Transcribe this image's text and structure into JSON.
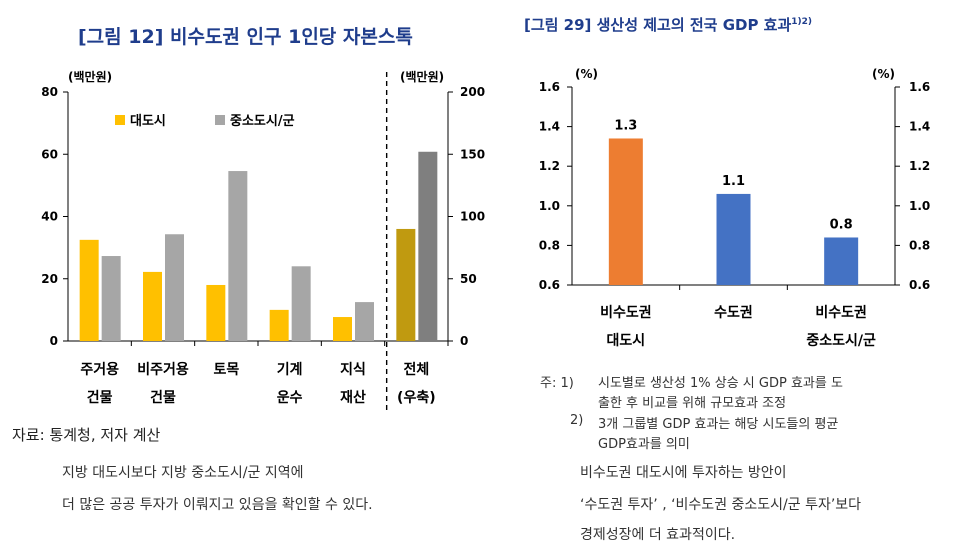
{
  "left_title": "[그림 12] 비수도권 인구 1인당 자본스톡",
  "right_title": "[그림 29] 생산성 제고의 전국 GDP 효과",
  "right_title_sup": "1)2)",
  "chart_data": [
    {
      "type": "bar",
      "title": "[그림 12] 비수도권 인구 1인당 자본스톡",
      "y_left_unit": "(백만원)",
      "y_right_unit": "(백만원)",
      "ylim_left": [
        0,
        80
      ],
      "yticks_left": [
        "0",
        "20",
        "40",
        "60",
        "80"
      ],
      "ylim_right": [
        0,
        200
      ],
      "yticks_right": [
        "0",
        "50",
        "100",
        "150",
        "200"
      ],
      "legend_position": "top-left",
      "categories": [
        [
          "주거용",
          "건물"
        ],
        [
          "비주거용",
          "건물"
        ],
        [
          "토목"
        ],
        [
          "기계",
          "운수"
        ],
        [
          "지식",
          "재산"
        ],
        [
          "전체",
          "(우축)"
        ]
      ],
      "series": [
        {
          "name": "대도시",
          "color": "#ffc000",
          "values": [
            32.5,
            22.2,
            18.0,
            10.0,
            7.7,
            90.0
          ]
        },
        {
          "name": "중소도시/군",
          "color": "#a6a6a6",
          "values": [
            27.3,
            34.3,
            54.6,
            24.0,
            12.5,
            152.0
          ]
        }
      ],
      "last_category_colors": [
        "#c09a10",
        "#7f7f7f"
      ],
      "divider": "between 지식재산 and 전체 (dashed)"
    },
    {
      "type": "bar",
      "title": "[그림 29] 생산성 제고의 전국 GDP 효과",
      "y_unit_left": "(%)",
      "y_unit_right": "(%)",
      "ylim": [
        0.6,
        1.6
      ],
      "yticks": [
        "0.6",
        "0.8",
        "1.0",
        "1.2",
        "1.4",
        "1.6"
      ],
      "categories": [
        [
          "비수도권",
          "대도시"
        ],
        [
          "수도권"
        ],
        [
          "비수도권",
          "중소도시/군"
        ]
      ],
      "values": [
        1.34,
        1.06,
        0.84
      ],
      "data_labels": [
        "1.3",
        "1.1",
        "0.8"
      ],
      "colors": [
        "#ed7d31",
        "#4472c4",
        "#4472c4"
      ]
    }
  ],
  "source_text": "자료: 통계청, 저자 계산",
  "left_caption": [
    "지방 대도시보다 지방 중소도시/군 지역에",
    "더 많은 공공 투자가 이뤄지고 있음을 확인할 수 있다."
  ],
  "notes": {
    "note1_prefix": "주: 1)",
    "note1_line1": "시도별로 생산성 1% 상승 시 GDP 효과를 도",
    "note1_line2": "출한 후 비교를 위해 규모효과 조정",
    "note2_prefix": "2)",
    "note2_line1": "3개 그룹별 GDP 효과는 해당 시도들의 평균",
    "note2_line2": "GDP효과를 의미"
  },
  "right_caption": [
    "비수도권 대도시에 투자하는 방안이",
    "‘수도권 투자’ , ‘비수도권 중소도시/군 투자’보다",
    "경제성장에 더 효과적이다."
  ]
}
